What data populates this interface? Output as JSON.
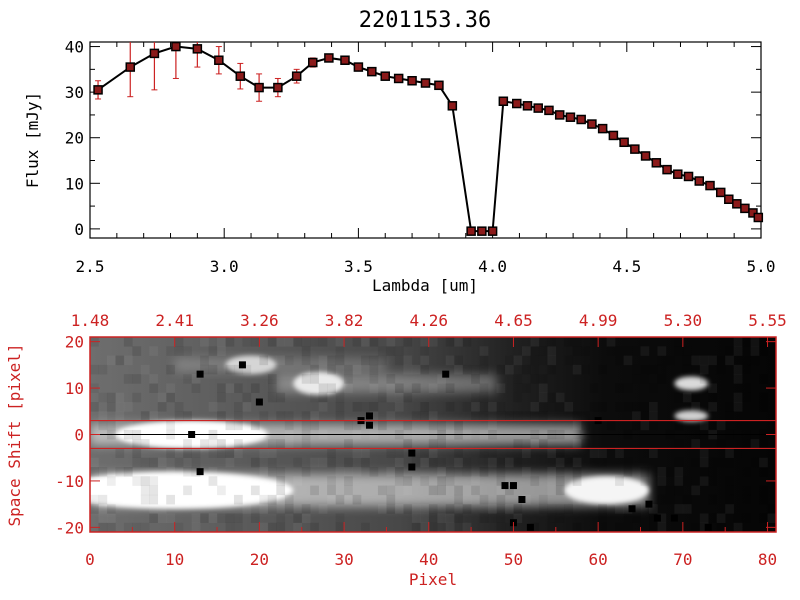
{
  "chart_data": [
    {
      "type": "line",
      "title": "2201153.36",
      "xlabel": "Lambda [um]",
      "ylabel": "Flux [mJy]",
      "xlim": [
        2.5,
        5.0
      ],
      "ylim": [
        -2,
        41
      ],
      "x_ticks": [
        "2.5",
        "3.0",
        "3.5",
        "4.0",
        "4.5",
        "5.0"
      ],
      "x_tick_values": [
        2.5,
        3.0,
        3.5,
        4.0,
        4.5,
        5.0
      ],
      "y_ticks": [
        "0",
        "10",
        "20",
        "30",
        "40"
      ],
      "y_tick_values": [
        0,
        10,
        20,
        30,
        40
      ],
      "line_color": "#000000",
      "marker_color": "#8b1a1a",
      "errorbar_color": "#cc2222",
      "series": [
        {
          "x": [
            2.53,
            2.65,
            2.74,
            2.82,
            2.9,
            2.98,
            3.06,
            3.13,
            3.2,
            3.27,
            3.33,
            3.39,
            3.45,
            3.5,
            3.55,
            3.6,
            3.65,
            3.7,
            3.75,
            3.8,
            3.85,
            3.92,
            3.96,
            4.0,
            4.04,
            4.09,
            4.13,
            4.17,
            4.21,
            4.25,
            4.29,
            4.33,
            4.37,
            4.41,
            4.45,
            4.49,
            4.53,
            4.57,
            4.61,
            4.65,
            4.69,
            4.73,
            4.77,
            4.81,
            4.85,
            4.88,
            4.91,
            4.94,
            4.97,
            4.99
          ],
          "y": [
            30.5,
            35.5,
            38.5,
            40.0,
            39.5,
            37.0,
            33.5,
            31.0,
            31.0,
            33.5,
            36.5,
            37.5,
            37.0,
            35.5,
            34.5,
            33.5,
            33.0,
            32.5,
            32.0,
            31.5,
            27.0,
            -0.5,
            -0.5,
            -0.5,
            28.0,
            27.5,
            27.0,
            26.5,
            26.0,
            25.0,
            24.5,
            24.0,
            23.0,
            22.0,
            20.5,
            19.0,
            17.5,
            16.0,
            14.5,
            13.0,
            12.0,
            11.5,
            10.5,
            9.5,
            8.0,
            6.5,
            5.5,
            4.5,
            3.5,
            2.5
          ],
          "err": [
            2.0,
            6.5,
            8.0,
            7.0,
            4.0,
            3.0,
            2.8,
            3.0,
            2.0,
            1.5,
            1.0,
            0.8,
            0.6,
            0.5,
            0.4,
            0.4,
            0.4,
            0.4,
            0.4,
            0.4,
            0.4,
            0,
            0,
            0,
            0.4,
            0.3,
            0.3,
            0.3,
            0.3,
            0.3,
            0.3,
            0.3,
            0.3,
            0.3,
            0.3,
            0.3,
            0.3,
            0.3,
            0.3,
            0.3,
            0.3,
            0.3,
            0.3,
            0.3,
            0.3,
            0.3,
            0.3,
            0.3,
            0.3,
            0.3
          ]
        }
      ]
    },
    {
      "type": "heatmap",
      "xlabel": "Pixel",
      "ylabel": "Space Shift [pixel]",
      "xlim": [
        0,
        81
      ],
      "ylim": [
        -21,
        21
      ],
      "x_ticks": [
        "0",
        "10",
        "20",
        "30",
        "40",
        "50",
        "60",
        "70",
        "80"
      ],
      "x_tick_values": [
        0,
        10,
        20,
        30,
        40,
        50,
        60,
        70,
        80
      ],
      "y_ticks": [
        "20",
        "10",
        "0",
        "-10",
        "-20"
      ],
      "y_tick_values": [
        20,
        10,
        0,
        -10,
        -20
      ],
      "top_ticks": [
        "1.48",
        "2.41",
        "3.26",
        "3.82",
        "4.26",
        "4.65",
        "4.99",
        "5.30",
        "5.55"
      ],
      "top_tick_values": [
        0,
        10,
        20,
        30,
        40,
        50,
        60,
        70,
        80
      ],
      "aperture_lines": [
        3,
        -3
      ],
      "center_line": 0,
      "axis_color": "#cc2222",
      "colormap": "grayscale",
      "emission_features": [
        {
          "x": 12,
          "y": 0,
          "width": 9,
          "height": 3,
          "level": 1.0
        },
        {
          "x": 10,
          "y": -12,
          "width": 14,
          "height": 4,
          "level": 1.0
        },
        {
          "x": 61,
          "y": -12,
          "width": 5,
          "height": 3,
          "level": 0.9
        },
        {
          "x": 27,
          "y": 11,
          "width": 3,
          "height": 2.5,
          "level": 0.8
        },
        {
          "x": 19,
          "y": 15,
          "width": 3,
          "height": 2,
          "level": 0.6
        },
        {
          "x": 71,
          "y": 11,
          "width": 2,
          "height": 1.5,
          "level": 0.65
        },
        {
          "x": 71,
          "y": 4,
          "width": 2,
          "height": 1.2,
          "level": 0.55
        }
      ],
      "bad_pixels": [
        [
          13,
          13
        ],
        [
          18,
          15
        ],
        [
          20,
          7
        ],
        [
          12,
          0
        ],
        [
          13,
          -8
        ],
        [
          33,
          2
        ],
        [
          32,
          3
        ],
        [
          38,
          -4
        ],
        [
          38,
          -7
        ],
        [
          50,
          -11
        ],
        [
          49,
          -11
        ],
        [
          51,
          -14
        ],
        [
          50,
          -19
        ],
        [
          52,
          -20
        ],
        [
          64,
          -16
        ],
        [
          66,
          -15
        ],
        [
          67,
          -18
        ],
        [
          69,
          -18
        ],
        [
          73,
          -20
        ],
        [
          33,
          4
        ],
        [
          42,
          13
        ],
        [
          60,
          3
        ]
      ]
    }
  ]
}
